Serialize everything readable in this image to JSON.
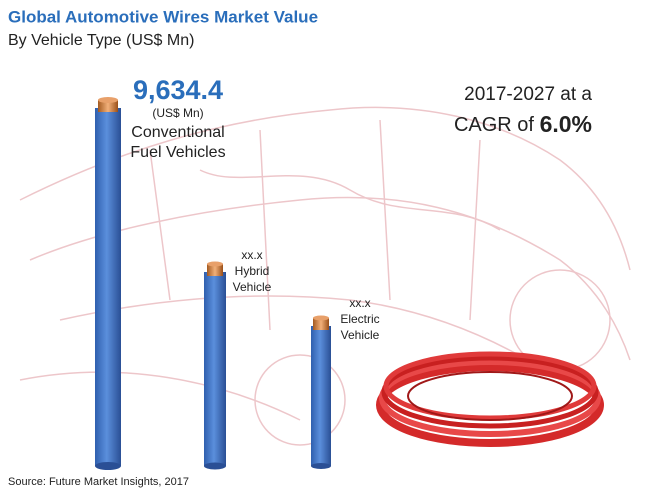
{
  "header": {
    "title": "Global Automotive Wires Market Value",
    "subtitle": "By Vehicle Type (US$ Mn)"
  },
  "wires": [
    {
      "value": "9,634.4",
      "unit": "(US$ Mn)",
      "label": [
        "Conventional",
        "Fuel Vehicles"
      ]
    },
    {
      "value": "xx.x",
      "label": [
        "Hybrid",
        "Vehicle"
      ]
    },
    {
      "value": "xx.x",
      "label": [
        "Electric",
        "Vehicle"
      ]
    }
  ],
  "cagr": {
    "period": "2017-2027 at a",
    "prefix": "CAGR of",
    "rate": "6.0%"
  },
  "source": "Source: Future Market Insights, 2017"
}
